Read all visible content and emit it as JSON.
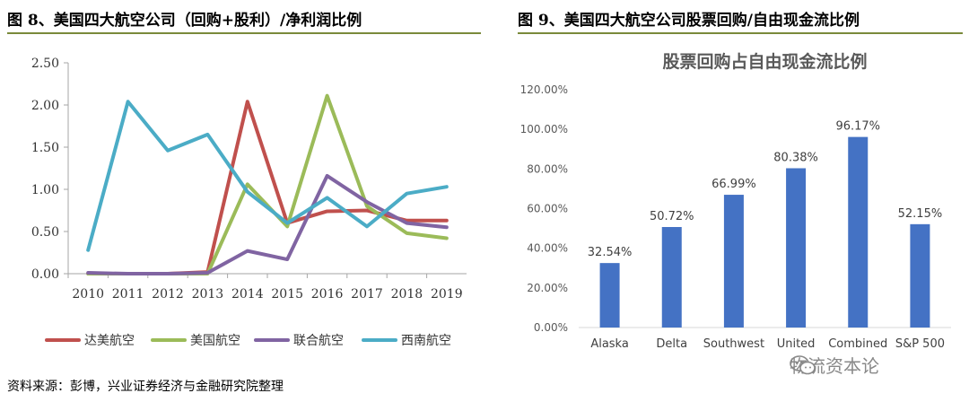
{
  "figure8": {
    "title": "图 8、美国四大航空公司（回购+股利）/净利润比例"
  },
  "figure9": {
    "title": "图 9、美国四大航空公司股票回购/自由现金流比例"
  },
  "source": "资料来源：彭博，兴业证券经济与金融研究院整理",
  "watermark": {
    "text": "物流资本论",
    "icon": "wechat-icon"
  },
  "chart_data": [
    {
      "type": "line",
      "title": "",
      "xlabel": "",
      "ylabel": "",
      "x": [
        "2010",
        "2011",
        "2012",
        "2013",
        "2014",
        "2015",
        "2016",
        "2017",
        "2018",
        "2019"
      ],
      "ylim": [
        0,
        2.5
      ],
      "yticks": [
        "0.00",
        "0.50",
        "1.00",
        "1.50",
        "2.00",
        "2.50"
      ],
      "legend_position": "bottom",
      "series": [
        {
          "name": "达美航空",
          "color": "#c0504d",
          "values": [
            0,
            0,
            0,
            0.02,
            2.04,
            0.6,
            0.74,
            0.75,
            0.63,
            0.63
          ]
        },
        {
          "name": "美国航空",
          "color": "#9bbb59",
          "values": [
            0,
            0,
            0,
            0,
            1.06,
            0.56,
            2.11,
            0.8,
            0.48,
            0.42
          ]
        },
        {
          "name": "联合航空",
          "color": "#8064a2",
          "values": [
            0.01,
            0,
            0,
            0.01,
            0.27,
            0.17,
            1.16,
            0.85,
            0.6,
            0.55
          ]
        },
        {
          "name": "西南航空",
          "color": "#4bacc6",
          "values": [
            0.28,
            2.04,
            1.46,
            1.65,
            0.97,
            0.6,
            0.9,
            0.56,
            0.95,
            1.03
          ]
        }
      ]
    },
    {
      "type": "bar",
      "title": "股票回购占自由现金流比例",
      "xlabel": "",
      "ylabel": "",
      "categories": [
        "Alaska",
        "Delta",
        "Southwest",
        "United",
        "Combined",
        "S&P 500"
      ],
      "values": [
        32.54,
        50.72,
        66.99,
        80.38,
        96.17,
        52.15
      ],
      "data_labels": [
        "32.54%",
        "50.72%",
        "66.99%",
        "80.38%",
        "96.17%",
        "52.15%"
      ],
      "ylim": [
        0,
        120
      ],
      "yticks": [
        "0.00%",
        "20.00%",
        "40.00%",
        "60.00%",
        "80.00%",
        "100.00%",
        "120.00%"
      ],
      "bar_color": "#4472c4"
    }
  ]
}
